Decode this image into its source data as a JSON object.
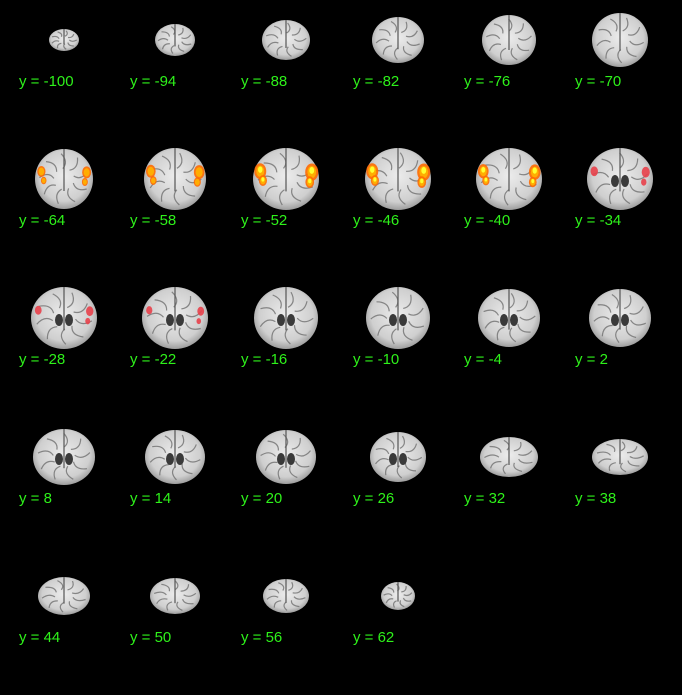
{
  "figure": {
    "background_color": "#000000",
    "label_color": "#2ef21a",
    "overlay_colormap": [
      "#e8404a",
      "#ff6a00",
      "#ffb000",
      "#ffff30"
    ],
    "slices": [
      {
        "label": "y = -100",
        "activation": 0
      },
      {
        "label": "y = -94",
        "activation": 0
      },
      {
        "label": "y = -88",
        "activation": 0
      },
      {
        "label": "y = -82",
        "activation": 0
      },
      {
        "label": "y = -76",
        "activation": 0
      },
      {
        "label": "y = -70",
        "activation": 0
      },
      {
        "label": "y = -64",
        "activation": 0.55
      },
      {
        "label": "y = -58",
        "activation": 0.75
      },
      {
        "label": "y = -52",
        "activation": 1.0
      },
      {
        "label": "y = -46",
        "activation": 1.0
      },
      {
        "label": "y = -40",
        "activation": 0.8
      },
      {
        "label": "y = -34",
        "activation": 0.3
      },
      {
        "label": "y = -28",
        "activation": 0.2
      },
      {
        "label": "y = -22",
        "activation": 0.12
      },
      {
        "label": "y = -16",
        "activation": 0
      },
      {
        "label": "y = -10",
        "activation": 0
      },
      {
        "label": "y = -4",
        "activation": 0
      },
      {
        "label": "y = 2",
        "activation": 0
      },
      {
        "label": "y = 8",
        "activation": 0
      },
      {
        "label": "y = 14",
        "activation": 0
      },
      {
        "label": "y = 20",
        "activation": 0
      },
      {
        "label": "y = 26",
        "activation": 0
      },
      {
        "label": "y = 32",
        "activation": 0
      },
      {
        "label": "y = 38",
        "activation": 0
      },
      {
        "label": "y = 44",
        "activation": 0
      },
      {
        "label": "y = 50",
        "activation": 0
      },
      {
        "label": "y = 56",
        "activation": 0
      },
      {
        "label": "y = 62",
        "activation": 0
      }
    ]
  }
}
